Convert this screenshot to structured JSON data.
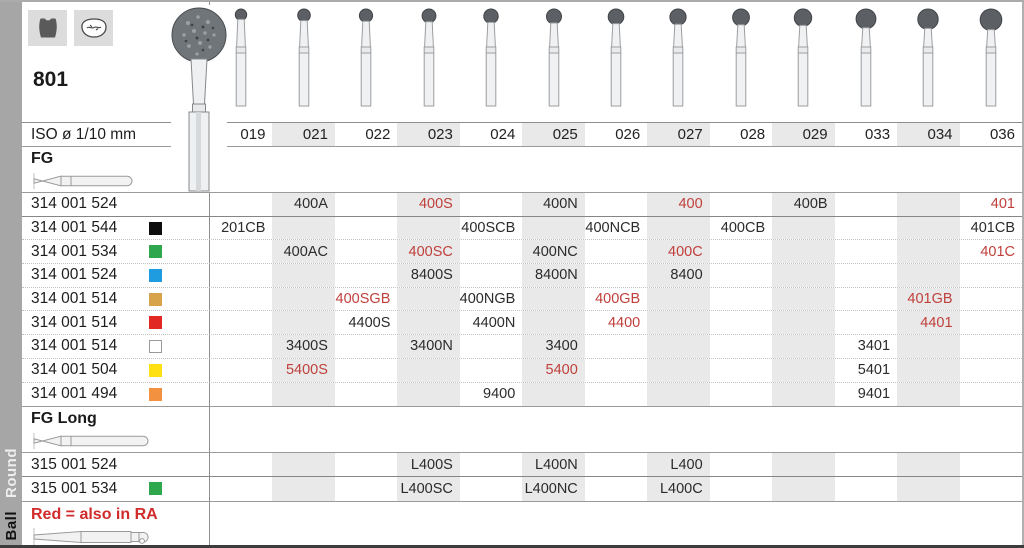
{
  "header": {
    "figure_number": "801",
    "icon_tiles": [
      "tooth-crown-icon",
      "occlusal-surface-icon"
    ],
    "product_image": "diamond-round-bur-photo"
  },
  "columns": {
    "iso_label": "ISO ø 1/10 mm",
    "sizes": [
      "019",
      "021",
      "022",
      "023",
      "024",
      "025",
      "026",
      "027",
      "028",
      "029",
      "033",
      "034",
      "036"
    ],
    "shaded": [
      "021",
      "023",
      "025",
      "027",
      "029",
      "034"
    ]
  },
  "colors": {
    "red_code": "#c0403c",
    "note_red": "#d22b2b",
    "band_gray": "#e9e9e9",
    "strip_gray": "#a6a6a6",
    "chips": {
      "black": "#0d0d0d",
      "green": "#2fa84d",
      "blue": "#1f9be0",
      "gold": "#d7a44c",
      "red": "#e12823",
      "white": "#ffffff",
      "yellow": "#ffe013",
      "orange": "#f2913f"
    }
  },
  "sections": [
    {
      "kind": "band",
      "label": "FG",
      "icon": "fg-shank-icon"
    },
    {
      "kind": "rows",
      "rows": [
        {
          "iso": "314 001 524",
          "chip": null,
          "cells": [
            {
              "col": "021",
              "code": "400A"
            },
            {
              "col": "023",
              "code": "400S",
              "red": true
            },
            {
              "col": "025",
              "code": "400N"
            },
            {
              "col": "027",
              "code": "400",
              "red": true
            },
            {
              "col": "029",
              "code": "400B"
            },
            {
              "col": "036",
              "code": "401",
              "red": true
            }
          ]
        },
        {
          "iso": "314 001 544",
          "chip": "black",
          "cells": [
            {
              "col": "019",
              "code": "201CB"
            },
            {
              "col": "024",
              "code": "400SCB"
            },
            {
              "col": "026",
              "code": "400NCB"
            },
            {
              "col": "028",
              "code": "400CB"
            },
            {
              "col": "036",
              "code": "401CB"
            }
          ]
        },
        {
          "iso": "314 001 534",
          "chip": "green",
          "cells": [
            {
              "col": "021",
              "code": "400AC"
            },
            {
              "col": "023",
              "code": "400SC",
              "red": true
            },
            {
              "col": "025",
              "code": "400NC"
            },
            {
              "col": "027",
              "code": "400C",
              "red": true
            },
            {
              "col": "036",
              "code": "401C",
              "red": true
            }
          ]
        },
        {
          "iso": "314 001 524",
          "chip": "blue",
          "cells": [
            {
              "col": "023",
              "code": "8400S"
            },
            {
              "col": "025",
              "code": "8400N"
            },
            {
              "col": "027",
              "code": "8400"
            }
          ]
        },
        {
          "iso": "314 001 514",
          "chip": "gold",
          "cells": [
            {
              "col": "022",
              "code": "400SGB",
              "red": true
            },
            {
              "col": "024",
              "code": "400NGB"
            },
            {
              "col": "026",
              "code": "400GB",
              "red": true
            },
            {
              "col": "034",
              "code": "401GB",
              "red": true
            }
          ]
        },
        {
          "iso": "314 001 514",
          "chip": "red",
          "cells": [
            {
              "col": "022",
              "code": "4400S"
            },
            {
              "col": "024",
              "code": "4400N"
            },
            {
              "col": "026",
              "code": "4400",
              "red": true
            },
            {
              "col": "034",
              "code": "4401",
              "red": true
            }
          ]
        },
        {
          "iso": "314 001 514",
          "chip": "white",
          "cells": [
            {
              "col": "021",
              "code": "3400S"
            },
            {
              "col": "023",
              "code": "3400N"
            },
            {
              "col": "025",
              "code": "3400"
            },
            {
              "col": "033",
              "code": "3401"
            }
          ]
        },
        {
          "iso": "314 001 504",
          "chip": "yellow",
          "cells": [
            {
              "col": "021",
              "code": "5400S",
              "red": true
            },
            {
              "col": "025",
              "code": "5400",
              "red": true
            },
            {
              "col": "033",
              "code": "5401"
            }
          ]
        },
        {
          "iso": "314 001 494",
          "chip": "orange",
          "cells": [
            {
              "col": "024",
              "code": "9400"
            },
            {
              "col": "033",
              "code": "9401"
            }
          ]
        }
      ]
    },
    {
      "kind": "band",
      "label": "FG Long",
      "icon": "fg-long-shank-icon"
    },
    {
      "kind": "rows",
      "rows": [
        {
          "iso": "315 001 524",
          "chip": null,
          "cells": [
            {
              "col": "023",
              "code": "L400S"
            },
            {
              "col": "025",
              "code": "L400N"
            },
            {
              "col": "027",
              "code": "L400"
            }
          ]
        },
        {
          "iso": "315 001 534",
          "chip": "green",
          "cells": [
            {
              "col": "023",
              "code": "L400SC"
            },
            {
              "col": "025",
              "code": "L400NC"
            },
            {
              "col": "027",
              "code": "L400C"
            }
          ]
        }
      ]
    }
  ],
  "footer": {
    "note": "Red = also in RA",
    "icon": "ra-shank-icon"
  },
  "side_labels": [
    {
      "text": "Round"
    },
    {
      "text": "Ball"
    }
  ]
}
